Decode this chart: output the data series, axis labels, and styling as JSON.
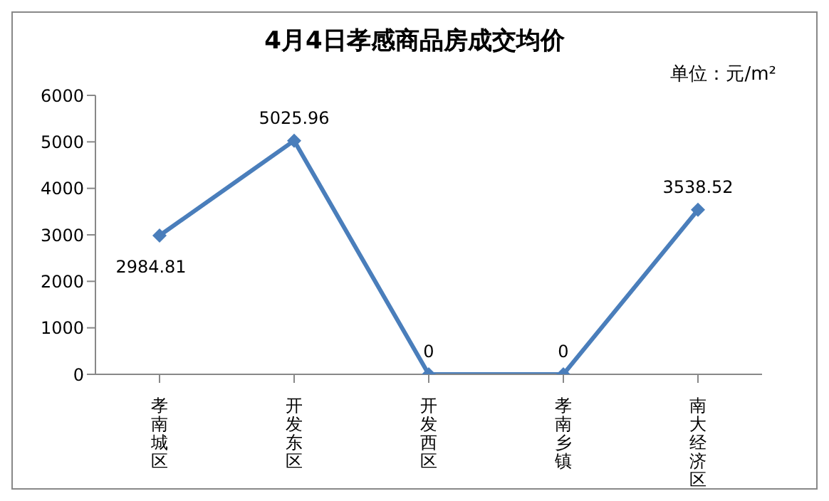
{
  "chart_data": {
    "type": "line",
    "title": "4月4日孝感商品房成交均价",
    "annotations": [
      "单位：元/m²"
    ],
    "categories": [
      "孝南城区",
      "开发东区",
      "开发西区",
      "孝南乡镇",
      "南大经济区"
    ],
    "series": [
      {
        "color": "#4a7ebb",
        "values": [
          2984.81,
          5025.96,
          0,
          0,
          3538.52
        ]
      }
    ],
    "ylim": [
      0,
      6000
    ],
    "yticks": [
      0,
      1000,
      2000,
      3000,
      4000,
      5000,
      6000
    ],
    "marker": "diamond",
    "line_style": "solid",
    "data_labels": true,
    "grid": false
  }
}
